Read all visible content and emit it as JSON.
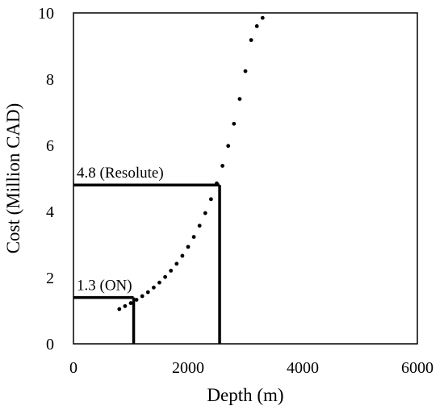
{
  "chart_data": {
    "type": "scatter",
    "title": "",
    "xlabel": "Depth (m)",
    "ylabel": "Cost (Million CAD)",
    "xlim": [
      0,
      6000
    ],
    "ylim": [
      0,
      10
    ],
    "x_ticks": [
      0,
      2000,
      4000,
      6000
    ],
    "y_ticks": [
      0,
      2,
      4,
      6,
      8,
      10
    ],
    "x_tick_labels": [
      "0",
      "2000",
      "4000",
      "6000"
    ],
    "y_tick_labels": [
      "0",
      "2",
      "4",
      "6",
      "8",
      "10"
    ],
    "grid": false,
    "legend": "none",
    "series": [
      {
        "style": "dotted",
        "x": [
          800,
          900,
          1000,
          1100,
          1200,
          1300,
          1400,
          1500,
          1600,
          1700,
          1800,
          1900,
          2000,
          2100,
          2200,
          2300,
          2400,
          2500,
          2600,
          2700,
          2800,
          2900,
          3000,
          3100,
          3200,
          3300
        ],
        "y": [
          1.05,
          1.14,
          1.23,
          1.33,
          1.44,
          1.56,
          1.7,
          1.85,
          2.02,
          2.21,
          2.42,
          2.66,
          2.93,
          3.23,
          3.57,
          3.95,
          4.37,
          4.85,
          5.38,
          5.98,
          6.65,
          7.4,
          8.24,
          9.18,
          9.6,
          9.85
        ]
      }
    ],
    "annotations": [
      {
        "label": "1.3 (ON)",
        "x": 1050,
        "y": 1.4
      },
      {
        "label": "4.8 (Resolute)",
        "x": 2550,
        "y": 4.8
      }
    ],
    "colors": {
      "marks": "#000000",
      "background": "#ffffff"
    }
  }
}
